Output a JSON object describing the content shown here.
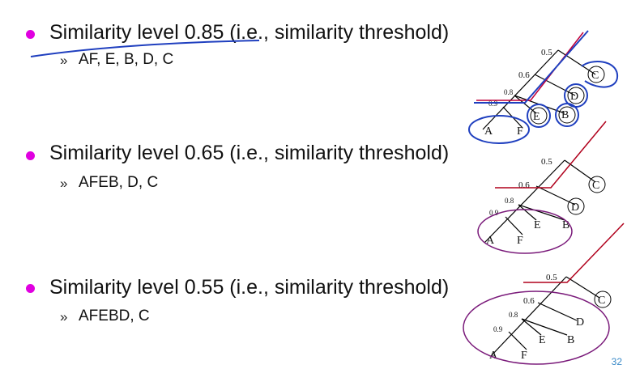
{
  "slide": {
    "page_number": "32",
    "items": [
      {
        "title": "Similarity level 0.85 (i.e., similarity threshold)",
        "result": "AF, E, B, D, C"
      },
      {
        "title": "Similarity level 0.65 (i.e., similarity threshold)",
        "result": "AFEB, D, C"
      },
      {
        "title": "Similarity level 0.55 (i.e., similarity threshold)",
        "result": "AFEBD, C"
      }
    ]
  },
  "dendrogram": {
    "levels": [
      "0.5",
      "0.6",
      "0.8",
      "0.9"
    ],
    "leaves": [
      "A",
      "F",
      "E",
      "B",
      "D",
      "C"
    ]
  },
  "colors": {
    "bullet": "#e000e0",
    "annotation_pen": "#1f3fbf",
    "threshold_line": "#b0001c",
    "cluster_ellipse": "#7a1a7a"
  }
}
